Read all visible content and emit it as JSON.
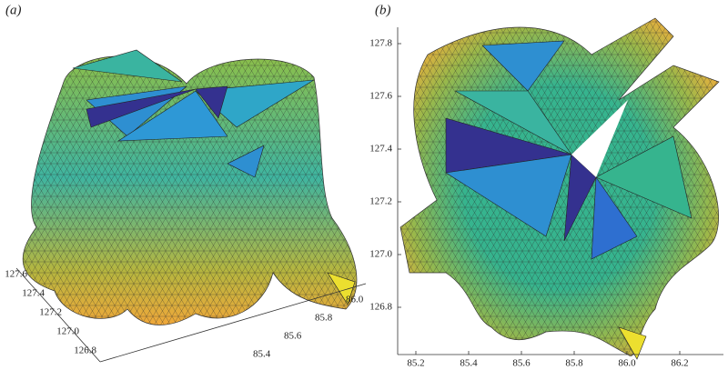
{
  "panels": [
    {
      "label": "(a)",
      "y_tick_labels": [
        "127.6",
        "127.4",
        "127.2",
        "127.0",
        "126.8"
      ],
      "x_tick_labels": [
        "86.0",
        "85.8",
        "85.6",
        "85.4"
      ]
    },
    {
      "label": "(b)",
      "y_tick_labels": [
        "127.8",
        "127.6",
        "127.4",
        "127.2",
        "127.0",
        "126.8"
      ],
      "x_tick_labels": [
        "85.2",
        "85.4",
        "85.6",
        "85.8",
        "86.0",
        "86.2"
      ]
    }
  ]
}
